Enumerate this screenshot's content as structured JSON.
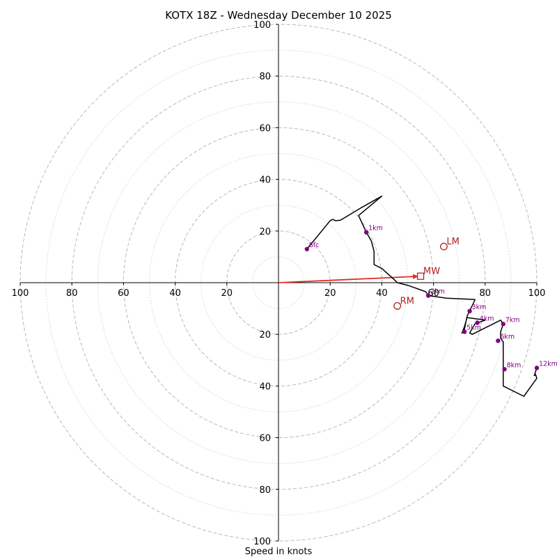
{
  "chart_data": {
    "type": "hodograph",
    "title": "KOTX 18Z - Wednesday December 10 2025",
    "xlabel": "Speed in knots",
    "ylabel": "",
    "xlim": [
      -100,
      100
    ],
    "ylim": [
      -100,
      100
    ],
    "ring_major": [
      20,
      40,
      60,
      80,
      100
    ],
    "ring_minor": [
      10,
      30,
      50,
      70,
      90
    ],
    "tick_values": [
      20,
      40,
      60,
      80,
      100
    ],
    "axis_tick_labels": [
      "20",
      "40",
      "60",
      "80",
      "100"
    ],
    "colors": {
      "profile": "#000000",
      "points": "#800080",
      "motion": "#b22222",
      "mean_wind_vector": "#e8261b",
      "major_grid": "#b8b8b8",
      "minor_grid": "#d0d0d0"
    },
    "profile": [
      [
        11,
        13
      ],
      [
        20,
        24
      ],
      [
        21,
        24.5
      ],
      [
        22,
        24
      ],
      [
        24,
        24.2
      ],
      [
        32,
        29
      ],
      [
        40,
        33.5
      ],
      [
        31,
        26
      ],
      [
        34,
        19.5
      ],
      [
        36,
        16
      ],
      [
        37,
        12
      ],
      [
        37,
        9
      ],
      [
        37,
        7
      ],
      [
        40,
        5.5
      ],
      [
        45,
        1
      ],
      [
        46,
        0
      ],
      [
        50,
        -1
      ],
      [
        57,
        -3.5
      ],
      [
        58,
        -5
      ],
      [
        65,
        -6
      ],
      [
        76,
        -6.5
      ],
      [
        76,
        -6.8
      ],
      [
        73,
        -13
      ],
      [
        72,
        -18
      ],
      [
        71,
        -19.5
      ],
      [
        72,
        -17
      ],
      [
        73,
        -13.5
      ],
      [
        80,
        -14.5
      ],
      [
        76,
        -16
      ],
      [
        74,
        -19.5
      ],
      [
        75,
        -20
      ],
      [
        86,
        -14.5
      ],
      [
        87,
        -16
      ],
      [
        86,
        -19
      ],
      [
        86,
        -21.5
      ],
      [
        87,
        -23
      ],
      [
        87,
        -34
      ],
      [
        87,
        -40
      ],
      [
        95,
        -44
      ],
      [
        100,
        -37
      ],
      [
        99.5,
        -35.5
      ],
      [
        99,
        -36
      ],
      [
        100,
        -33
      ]
    ],
    "points": [
      {
        "label": "Sfc",
        "u": 11,
        "v": 13
      },
      {
        "label": "1km",
        "u": 34,
        "v": 19.5
      },
      {
        "label": "2km",
        "u": 58,
        "v": -5
      },
      {
        "label": "3km",
        "u": 74,
        "v": -11
      },
      {
        "label": "4km",
        "u": 77,
        "v": -15.5
      },
      {
        "label": "5km",
        "u": 72,
        "v": -19
      },
      {
        "label": "6km",
        "u": 85,
        "v": -22.5
      },
      {
        "label": "7km",
        "u": 87,
        "v": -16
      },
      {
        "label": "8km",
        "u": 87.5,
        "v": -33.5
      },
      {
        "label": "12km",
        "u": 100,
        "v": -33
      }
    ],
    "storm_motion": [
      {
        "label": "LM",
        "u": 64,
        "v": 14,
        "marker": "circle"
      },
      {
        "label": "RM",
        "u": 46,
        "v": -9,
        "marker": "circle"
      },
      {
        "label": "MW",
        "u": 55,
        "v": 2.5,
        "marker": "square"
      }
    ]
  }
}
